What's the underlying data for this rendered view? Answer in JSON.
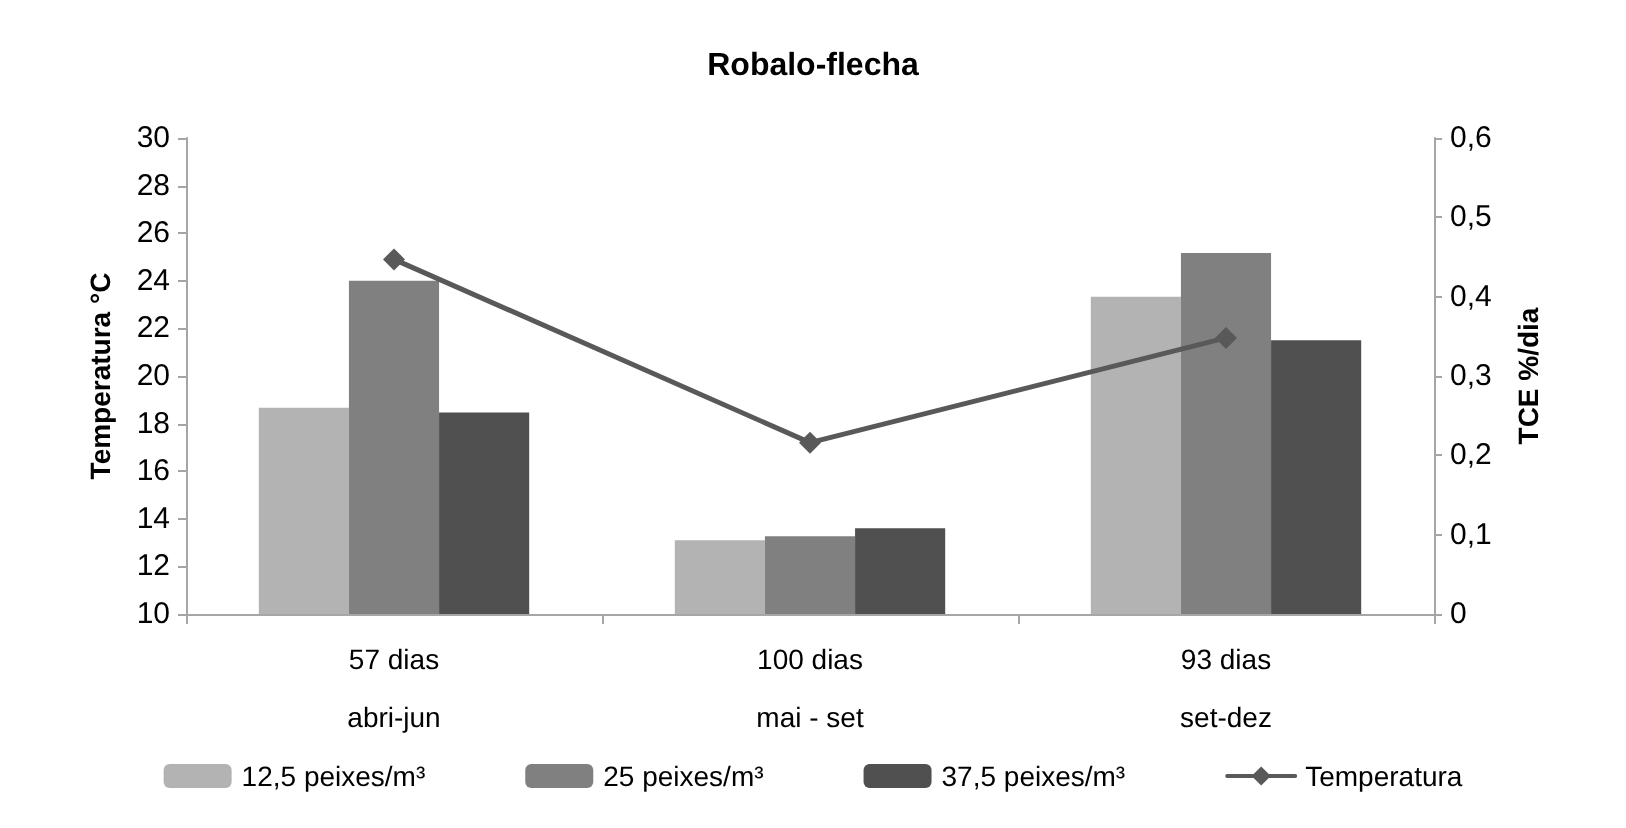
{
  "chart_data": {
    "type": "bar",
    "title": "Robalo-flecha",
    "ylabel": "Temperatura °C",
    "y2label": "TCE %/dia",
    "categories": [
      "57 dias\nabri-jun",
      "100 dias\nmai - set",
      "93 dias\nset-dez"
    ],
    "series": [
      {
        "name": "12,5 peixes/m³",
        "color": "#b3b3b3",
        "axis": "y2",
        "values": [
          0.26,
          0.093,
          0.4
        ]
      },
      {
        "name": "25 peixes/m³",
        "color": "#808080",
        "axis": "y2",
        "values": [
          0.42,
          0.098,
          0.455
        ]
      },
      {
        "name": "37,5 peixes/m³",
        "color": "#505050",
        "axis": "y2",
        "values": [
          0.254,
          0.108,
          0.345
        ]
      },
      {
        "name": "Temperatura",
        "type": "line",
        "color": "#595959",
        "marker": "diamond",
        "values": [
          24.9,
          17.2,
          21.6
        ]
      }
    ],
    "ylim": [
      10,
      30
    ],
    "yticks": [
      10,
      12,
      14,
      16,
      18,
      20,
      22,
      24,
      26,
      28,
      30
    ],
    "y2lim": [
      0,
      0.6
    ],
    "y2ticks": [
      0,
      {
        "value": 0.1,
        "label": "0,1"
      },
      {
        "value": 0.2,
        "label": "0,2"
      },
      {
        "value": 0.3,
        "label": "0,3"
      },
      {
        "value": 0.4,
        "label": "0,4"
      },
      {
        "value": 0.5,
        "label": "0,5"
      },
      {
        "value": 0.6,
        "label": "0,6"
      }
    ],
    "grid": false,
    "legend": "bottom"
  }
}
